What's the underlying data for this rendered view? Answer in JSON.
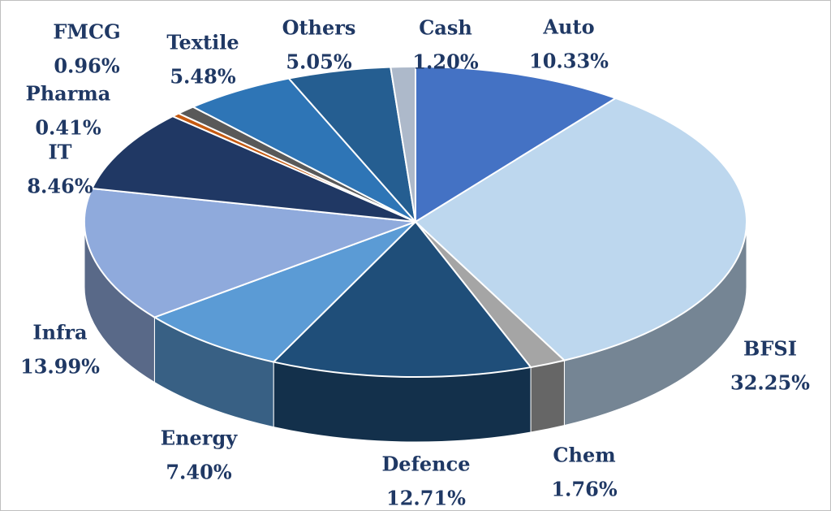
{
  "chart_data": {
    "type": "pie",
    "title": "",
    "slices": [
      {
        "name": "Auto",
        "value": 10.33,
        "label": "10.33%",
        "color": "#4472c4"
      },
      {
        "name": "BFSI",
        "value": 32.25,
        "label": "32.25%",
        "color": "#bdd7ee"
      },
      {
        "name": "Chem",
        "value": 1.76,
        "label": "1.76%",
        "color": "#a5a5a5"
      },
      {
        "name": "Defence",
        "value": 12.71,
        "label": "12.71%",
        "color": "#1f4e79"
      },
      {
        "name": "Energy",
        "value": 7.4,
        "label": "7.40%",
        "color": "#5b9bd5"
      },
      {
        "name": "Infra",
        "value": 13.99,
        "label": "13.99%",
        "color": "#8faadc"
      },
      {
        "name": "IT",
        "value": 8.46,
        "label": "8.46%",
        "color": "#203864"
      },
      {
        "name": "Pharma",
        "value": 0.41,
        "label": "0.41%",
        "color": "#c55a11"
      },
      {
        "name": "FMCG",
        "value": 0.96,
        "label": "0.96%",
        "color": "#595959"
      },
      {
        "name": "Textile",
        "value": 5.48,
        "label": "5.48%",
        "color": "#2e75b6"
      },
      {
        "name": "Others",
        "value": 5.05,
        "label": "5.05%",
        "color": "#255e91"
      },
      {
        "name": "Cash",
        "value": 1.2,
        "label": "1.20%",
        "color": "#adb9ca"
      }
    ],
    "style": "3d-pie",
    "legend": "none",
    "label_color": "#1f3864"
  }
}
